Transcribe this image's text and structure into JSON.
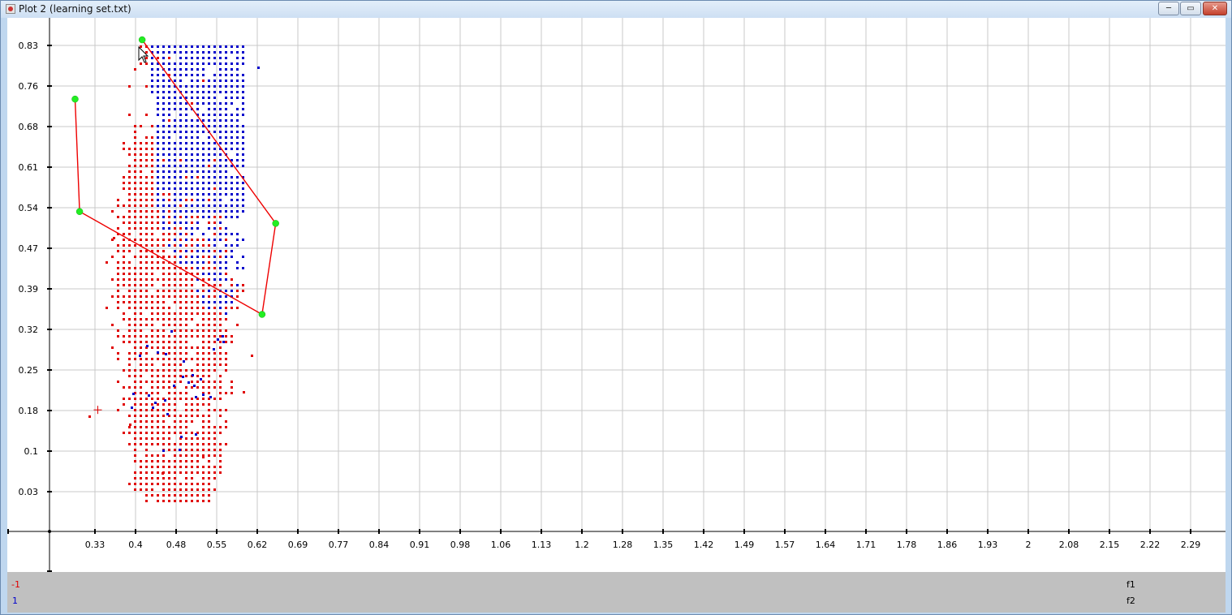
{
  "window": {
    "title": "Plot 2 (learning set.txt)",
    "minimize_label": "─",
    "maximize_label": "▭",
    "close_label": "✕"
  },
  "legend": {
    "class_neg": "-1",
    "class_pos": "1",
    "axis1": "f1",
    "axis2": "f2"
  },
  "colors": {
    "class_neg": "#e00000",
    "class_pos": "#0000cc",
    "polygon": "#ee0000",
    "vertex": "#22ee22",
    "grid": "#c8c8c8",
    "legend_bg": "#c0c0c0"
  },
  "chart_data": {
    "type": "scatter",
    "xlabel": "",
    "ylabel": "",
    "xlim": [
      0.26,
      2.36
    ],
    "ylim": [
      -0.04,
      0.865
    ],
    "grid": true,
    "x_ticks": [
      "0.33",
      "0.4",
      "0.48",
      "0.55",
      "0.62",
      "0.69",
      "0.77",
      "0.84",
      "0.91",
      "0.98",
      "1.06",
      "1.13",
      "1.2",
      "1.28",
      "1.35",
      "1.42",
      "1.49",
      "1.57",
      "1.64",
      "1.71",
      "1.78",
      "1.86",
      "1.93",
      "2",
      "2.08",
      "2.15",
      "2.22",
      "2.29"
    ],
    "y_ticks": [
      "0.83",
      "0.76",
      "0.68",
      "0.61",
      "0.54",
      "0.47",
      "0.39",
      "0.32",
      "0.25",
      "0.18",
      "0.1",
      "0.03"
    ],
    "series": [
      {
        "name": "-1",
        "color": "#e00000",
        "region": {
          "x": [
            0.33,
            0.6
          ],
          "y": [
            0.03,
            0.83
          ]
        },
        "approx_points": 1200
      },
      {
        "name": "1",
        "color": "#0000cc",
        "region": {
          "x": [
            0.41,
            0.61
          ],
          "y": [
            0.38,
            0.83
          ]
        },
        "approx_points": 420
      }
    ],
    "polygon": {
      "points": [
        {
          "x": 0.295,
          "y": 0.735
        },
        {
          "x": 0.303,
          "y": 0.536
        },
        {
          "x": 0.624,
          "y": 0.354
        },
        {
          "x": 0.648,
          "y": 0.515
        },
        {
          "x": 0.413,
          "y": 0.84
        }
      ]
    },
    "cursor_marker": {
      "x": 0.335,
      "y": 0.185
    }
  }
}
